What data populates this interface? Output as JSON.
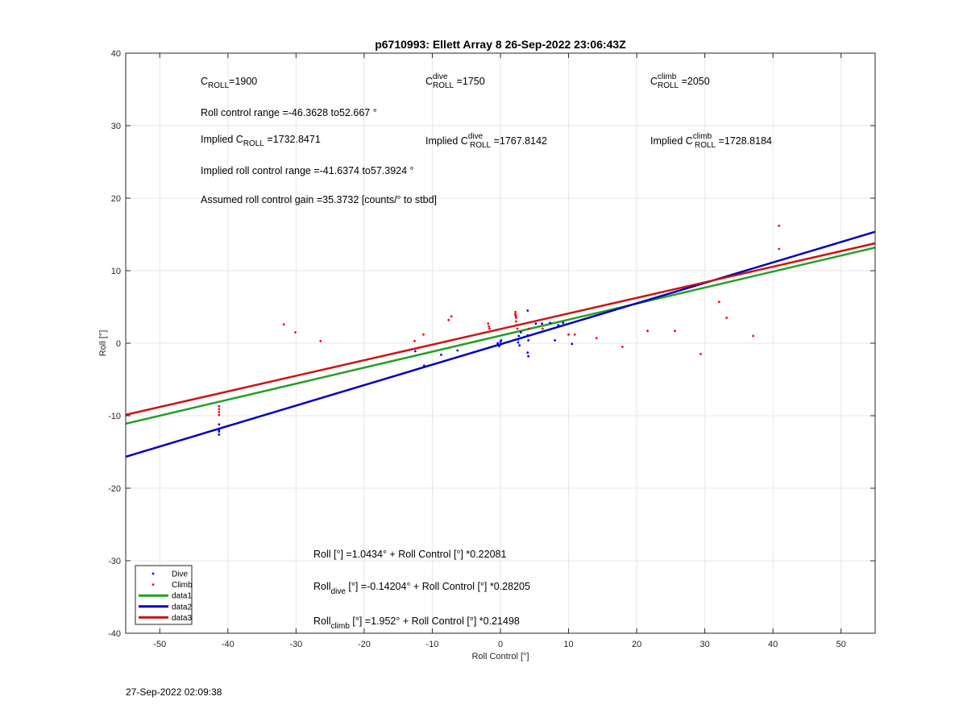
{
  "footer_timestamp": "27-Sep-2022 02:09:38",
  "chart_data": {
    "type": "scatter",
    "title": "p6710993: Ellett Array 8 26-Sep-2022 23:06:43Z",
    "xlabel": "Roll Control [°]",
    "ylabel": "Roll [°]",
    "xlim": [
      -55,
      55
    ],
    "ylim": [
      -40,
      40
    ],
    "xticks": [
      -50,
      -40,
      -30,
      -20,
      -10,
      0,
      10,
      20,
      30,
      40,
      50
    ],
    "yticks": [
      -40,
      -30,
      -20,
      -10,
      0,
      10,
      20,
      30,
      40
    ],
    "grid": true,
    "legend_position": "bottom-left",
    "colors": {
      "dive": "#0000ff",
      "climb": "#ff0000",
      "data1": "#22a022",
      "data2": "#0000c0",
      "data3": "#cc1414"
    },
    "series": [
      {
        "name": "Dive",
        "kind": "points",
        "points": [
          [
            -41.3,
            -11.2
          ],
          [
            -41.3,
            -11.8
          ],
          [
            -41.3,
            -12.2
          ],
          [
            -41.3,
            -12.6
          ],
          [
            -41.3,
            -12.0
          ],
          [
            -12.5,
            -1.1
          ],
          [
            -11.2,
            -3.1
          ],
          [
            -8.7,
            -1.6
          ],
          [
            -6.3,
            -1.0
          ],
          [
            -0.4,
            0.0
          ],
          [
            -0.2,
            -0.4
          ],
          [
            0,
            0.2
          ],
          [
            0,
            -0.2
          ],
          [
            0.1,
            0.4
          ],
          [
            2.6,
            0.1
          ],
          [
            2.6,
            0.5
          ],
          [
            2.7,
            1.0
          ],
          [
            2.8,
            -0.3
          ],
          [
            3.0,
            1.5
          ],
          [
            4.0,
            4.5
          ],
          [
            4.0,
            1.1
          ],
          [
            4.1,
            0.4
          ],
          [
            4.0,
            -1.3
          ],
          [
            4.1,
            -1.8
          ],
          [
            5.2,
            2.7
          ],
          [
            6.1,
            2.7
          ],
          [
            7.3,
            2.8
          ],
          [
            8.0,
            0.4
          ],
          [
            8.5,
            2.5
          ],
          [
            9.2,
            2.8
          ],
          [
            10.5,
            -0.1
          ]
        ]
      },
      {
        "name": "Climb",
        "kind": "points",
        "points": [
          [
            -41.3,
            -8.7
          ],
          [
            -41.3,
            -9.1
          ],
          [
            -41.3,
            -9.5
          ],
          [
            -41.3,
            -9.9
          ],
          [
            -31.8,
            2.6
          ],
          [
            -30.1,
            1.5
          ],
          [
            -26.4,
            0.3
          ],
          [
            -12.6,
            0.3
          ],
          [
            -11.3,
            1.2
          ],
          [
            -7.6,
            3.2
          ],
          [
            -7.2,
            3.7
          ],
          [
            -1.8,
            2.7
          ],
          [
            -1.7,
            2.3
          ],
          [
            -1.6,
            2.0
          ],
          [
            2.2,
            4.3
          ],
          [
            2.2,
            3.9
          ],
          [
            2.3,
            3.5
          ],
          [
            2.3,
            3.0
          ],
          [
            2.4,
            2.5
          ],
          [
            2.5,
            2.0
          ],
          [
            2.2,
            4.0
          ],
          [
            2.3,
            3.7
          ],
          [
            4.2,
            2.0
          ],
          [
            6.2,
            2.0
          ],
          [
            10.0,
            1.2
          ],
          [
            10.9,
            1.2
          ],
          [
            14.1,
            0.7
          ],
          [
            17.9,
            -0.5
          ],
          [
            21.6,
            1.7
          ],
          [
            25.6,
            1.7
          ],
          [
            29.4,
            -1.5
          ],
          [
            32.1,
            5.7
          ],
          [
            33.2,
            3.5
          ],
          [
            37.1,
            1.0
          ],
          [
            40.9,
            16.2
          ],
          [
            40.9,
            13.0
          ]
        ]
      },
      {
        "name": "data1",
        "kind": "line",
        "intercept": 1.0434,
        "slope": 0.22081
      },
      {
        "name": "data2",
        "kind": "line",
        "intercept": -0.14204,
        "slope": 0.28205
      },
      {
        "name": "data3",
        "kind": "line",
        "intercept": 1.952,
        "slope": 0.21498
      }
    ],
    "annotations": {
      "c_roll": {
        "main": "C",
        "sub": "ROLL",
        "rest": "=1900"
      },
      "c_roll_dive": {
        "main": "C",
        "sup": "dive",
        "sub": "ROLL",
        "rest": " =1750"
      },
      "c_roll_climb": {
        "main": "C",
        "sup": "climb",
        "sub": "ROLL",
        "rest": " =2050"
      },
      "roll_range": "Roll control range =-46.3628 to52.667 °",
      "implied_c_roll": {
        "pre": "Implied C",
        "sub": "ROLL",
        "rest": " =1732.8471"
      },
      "implied_c_roll_dive": {
        "pre": "Implied C",
        "sup": "dive",
        "sub": "ROLL",
        "rest": " =1767.8142"
      },
      "implied_c_roll_climb": {
        "pre": "Implied C",
        "sup": "climb",
        "sub": "ROLL",
        "rest": " =1728.8184"
      },
      "implied_range": "Implied roll control range =-41.6374 to57.3924 °",
      "gain": "Assumed roll control gain =35.3732 [counts/° to stbd]",
      "fit_all": {
        "pre": "Roll [°] =1.0434° + Roll Control [°] *0.22081"
      },
      "fit_dive": {
        "pre": "Roll",
        "sub": "dive",
        "rest": " [°] =-0.14204° + Roll Control [°] *0.28205"
      },
      "fit_climb": {
        "pre": "Roll",
        "sub": "climb",
        "rest": " [°] =1.952° + Roll Control [°] *0.21498"
      }
    }
  }
}
